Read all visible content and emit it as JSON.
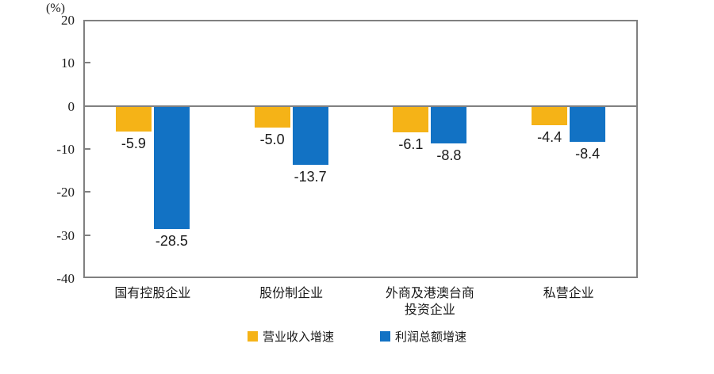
{
  "chart": {
    "background": "#ffffff",
    "axis_color": "#808080",
    "text_color": "#1a1a1a"
  },
  "chart_data": {
    "type": "bar",
    "title": "",
    "ylabel": "(%)",
    "xlabel": "",
    "categories": [
      "国有控股企业",
      "股份制企业",
      "外商及港澳台商\n投资企业",
      "私营企业"
    ],
    "series": [
      {
        "name": "营业收入增速",
        "color": "#F5B317",
        "values": [
          -5.9,
          -5.0,
          -6.1,
          -4.4
        ]
      },
      {
        "name": "利润总额增速",
        "color": "#1272C4",
        "values": [
          -28.5,
          -13.7,
          -8.8,
          -8.4
        ]
      }
    ],
    "value_labels": [
      [
        "-5.9",
        "-5.0",
        "-6.1",
        "-4.4"
      ],
      [
        "-28.5",
        "-13.7",
        "-8.8",
        "-8.4"
      ]
    ],
    "yticks": [
      20,
      10,
      0,
      -10,
      -20,
      -30,
      -40
    ],
    "ylim": [
      -40,
      20
    ],
    "grid": false,
    "legend_position": "bottom"
  }
}
